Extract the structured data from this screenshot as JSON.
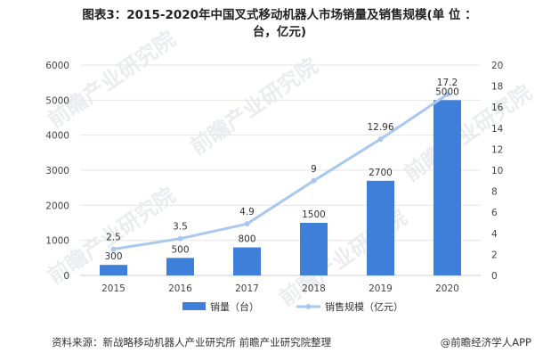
{
  "title": {
    "line1": "图表3：2015-2020年中国叉式移动机器人市场销量及销售规模(单 位 ：",
    "line2": "台，亿元)"
  },
  "footer": {
    "source": "资料来源：新战略移动机器人产业研究所 前瞻产业研究院整理",
    "credit": "@前瞻经济学人APP"
  },
  "colors": {
    "bar": "#3d7fd9",
    "line": "#a9c8ef",
    "grid": "#e6e6e6"
  },
  "chart_data": {
    "type": "bar",
    "categories": [
      "2015",
      "2016",
      "2017",
      "2018",
      "2019",
      "2020"
    ],
    "series": [
      {
        "name": "销量（台）",
        "type": "bar",
        "axis": "left",
        "values": [
          300,
          500,
          800,
          1500,
          2700,
          5000
        ]
      },
      {
        "name": "销售规模（亿元）",
        "type": "line",
        "axis": "right",
        "values": [
          2.5,
          3.5,
          4.9,
          9,
          12.96,
          17.2
        ]
      }
    ],
    "yleft": {
      "min": 0,
      "max": 6000,
      "ticks": [
        0,
        1000,
        2000,
        3000,
        4000,
        5000,
        6000
      ]
    },
    "yright": {
      "min": 0,
      "max": 20,
      "ticks": [
        0,
        2,
        4,
        6,
        8,
        10,
        12,
        14,
        16,
        18,
        20
      ]
    },
    "grid": true,
    "legend": "bottom"
  }
}
